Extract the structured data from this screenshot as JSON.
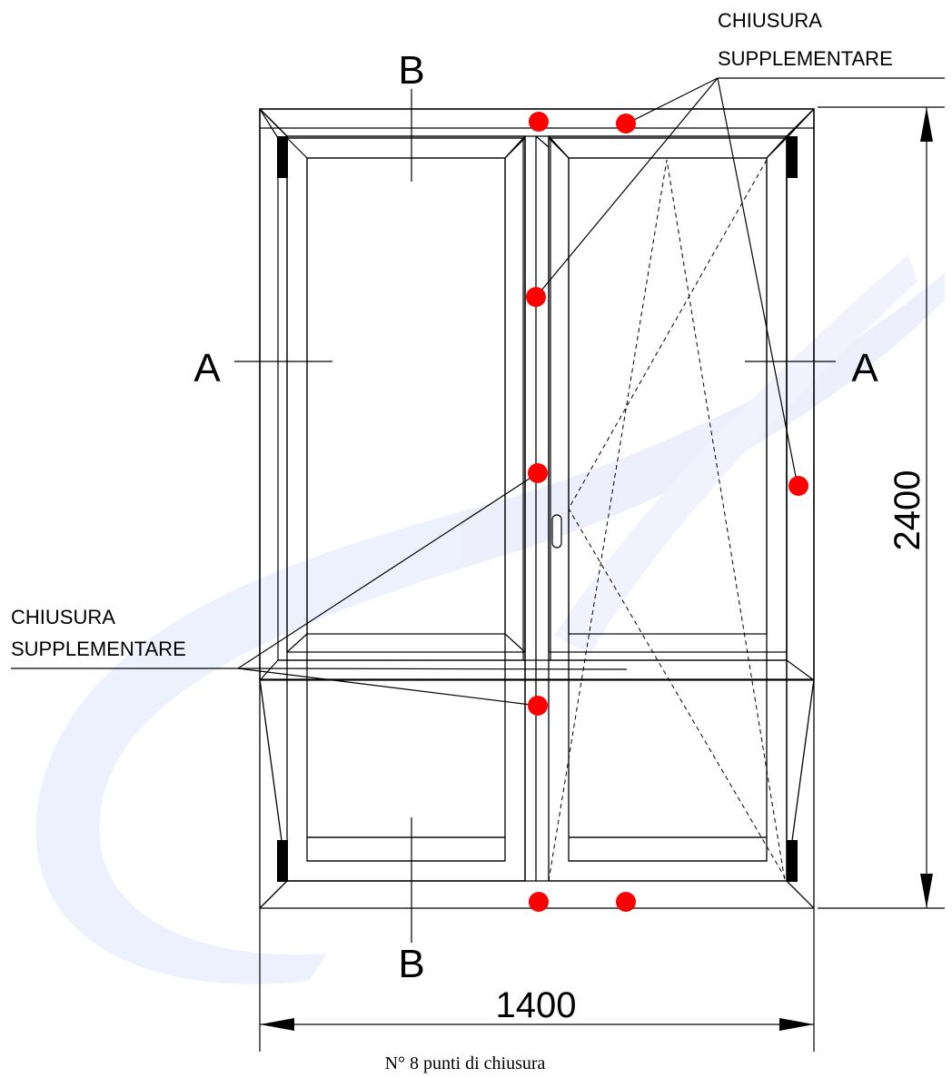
{
  "section_labels": {
    "top_b": "B",
    "bottom_b": "B",
    "left_a": "A",
    "right_a": "A"
  },
  "annotations": {
    "top_right": [
      "CHIUSURA",
      "SUPPLEMENTARE"
    ],
    "left": [
      "CHIUSURA",
      "SUPPLEMENTARE"
    ]
  },
  "dimensions": {
    "width": "1400",
    "height": "2400"
  },
  "caption": "N° 8 punti di chiusura",
  "colors": {
    "locking_point": "#ff0000",
    "hinge": "#000000",
    "watermark": "#e6e8fb"
  }
}
